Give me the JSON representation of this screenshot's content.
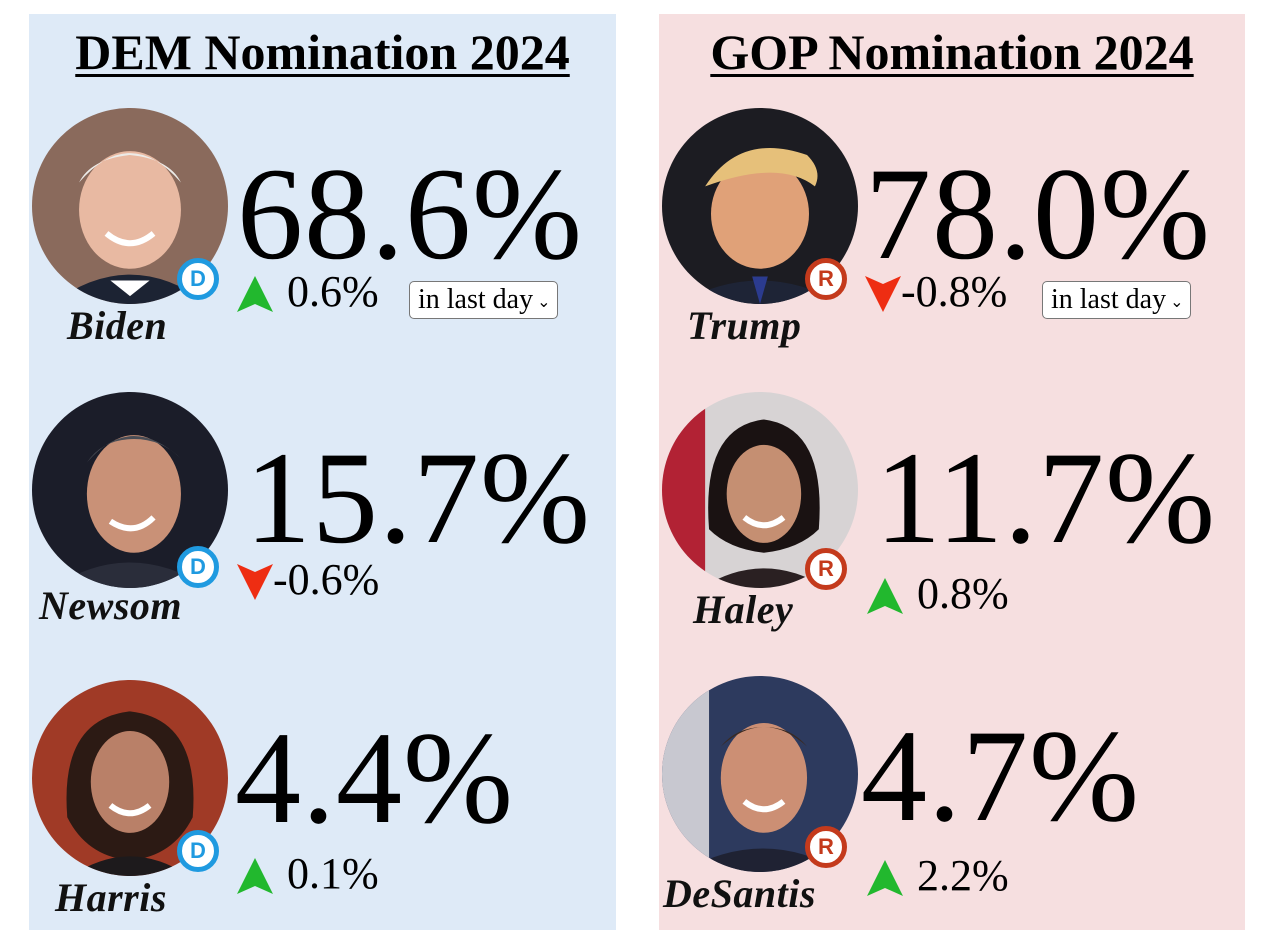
{
  "dem": {
    "title": "DEM Nomination 2024",
    "party_letter": "D",
    "candidates": [
      {
        "name": "Biden",
        "pct": "68.6%",
        "change": "0.6%",
        "direction": "up",
        "period": "in last day"
      },
      {
        "name": "Newsom",
        "pct": "15.7%",
        "change": "-0.6%",
        "direction": "down"
      },
      {
        "name": "Harris",
        "pct": "4.4%",
        "change": "0.1%",
        "direction": "up"
      }
    ]
  },
  "gop": {
    "title": "GOP Nomination 2024",
    "party_letter": "R",
    "candidates": [
      {
        "name": "Trump",
        "pct": "78.0%",
        "change": "-0.8%",
        "direction": "down",
        "period": "in last day"
      },
      {
        "name": "Haley",
        "pct": "11.7%",
        "change": "0.8%",
        "direction": "up"
      },
      {
        "name": "DeSantis",
        "pct": "4.7%",
        "change": "2.2%",
        "direction": "up"
      }
    ]
  },
  "colors": {
    "dem_panel": "#deeaf7",
    "gop_panel": "#f6dfe0",
    "dem_badge": "#1f9ae0",
    "gop_badge": "#c43a1c",
    "up_arrow": "#22b82e",
    "down_arrow": "#ee2d12"
  },
  "icons": {
    "up": "triangle-up-icon",
    "down": "triangle-down-icon",
    "dem_badge": "democrat-d-badge-icon",
    "gop_badge": "republican-r-badge-icon"
  }
}
